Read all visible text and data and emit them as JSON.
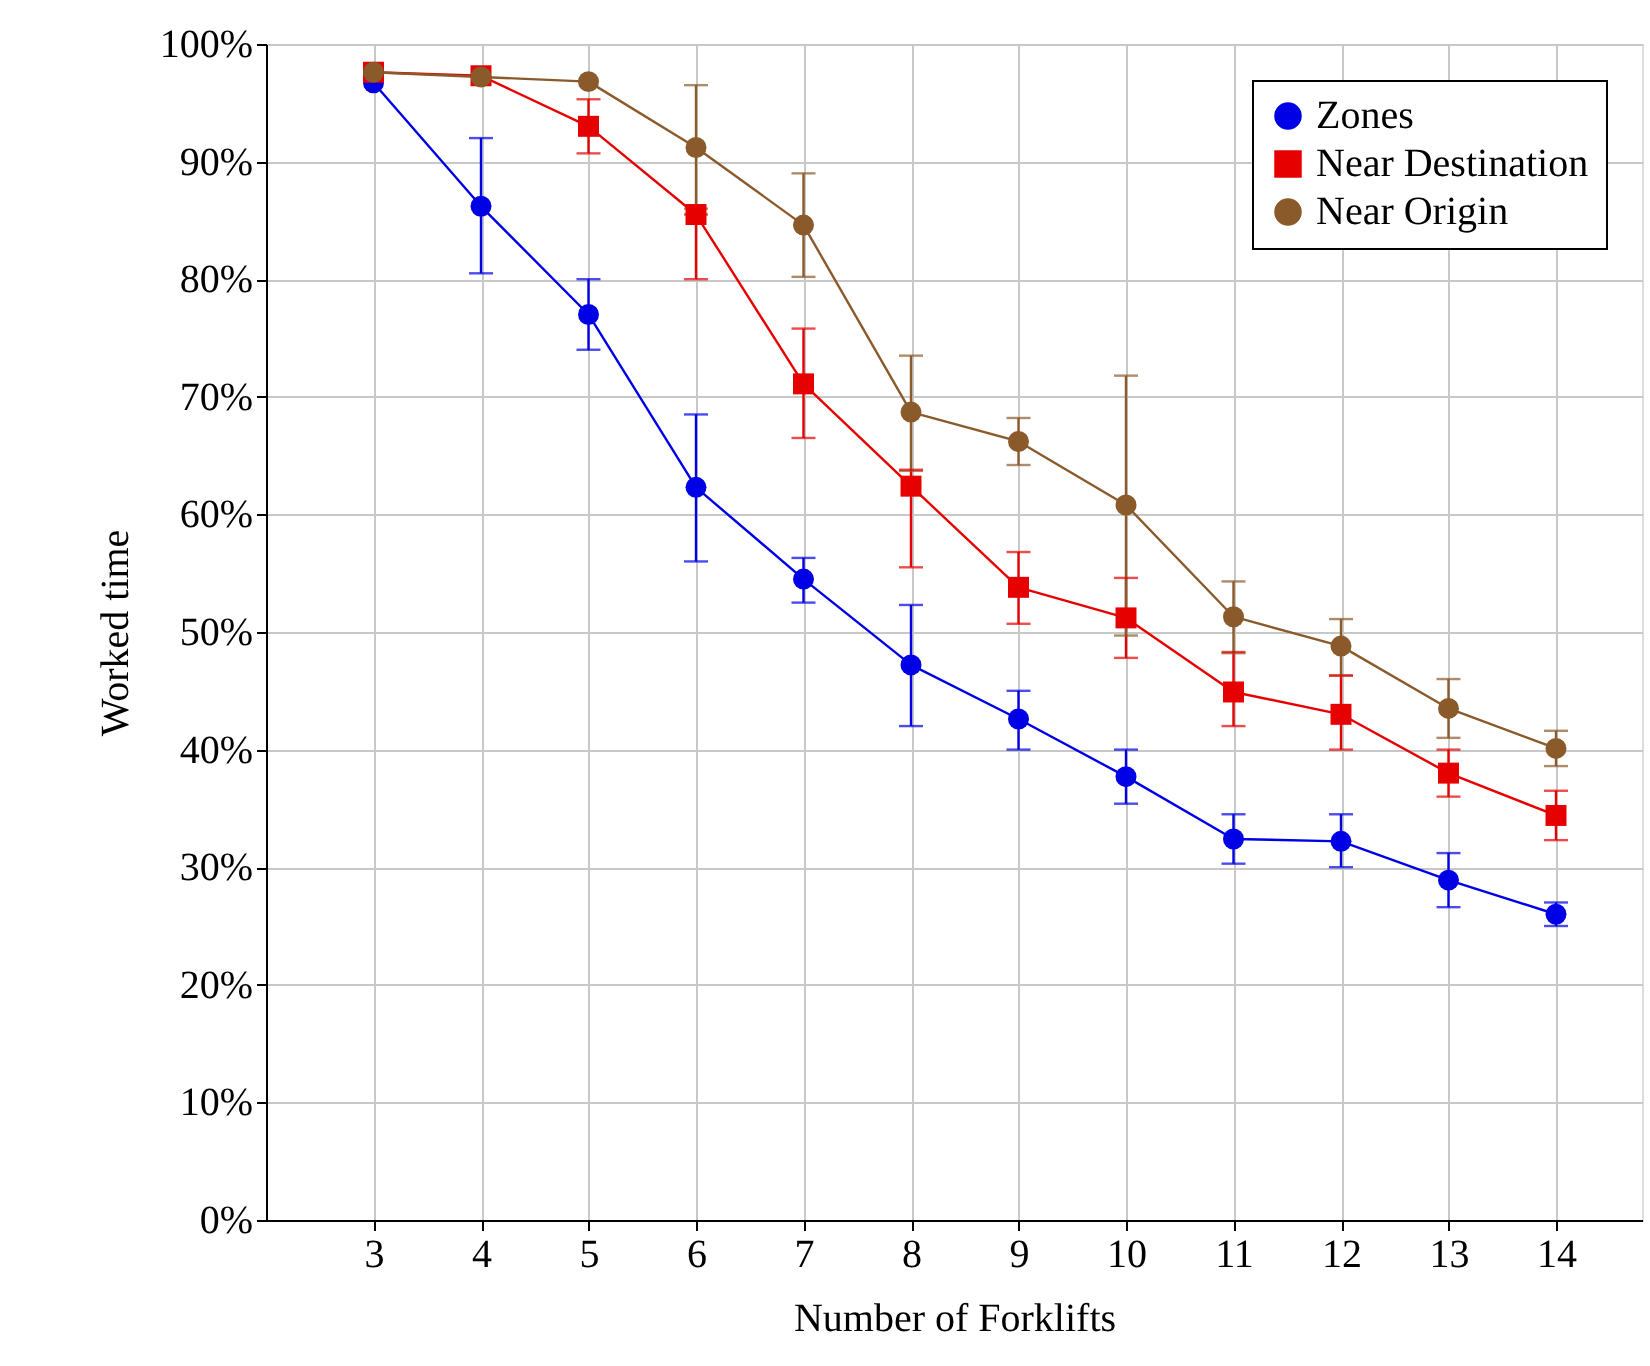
{
  "chart_data": {
    "type": "line",
    "xlabel": "Number of Forklifts",
    "ylabel": "Worked time",
    "x": [
      3,
      4,
      5,
      6,
      7,
      8,
      9,
      10,
      11,
      12,
      13,
      14
    ],
    "xlim": [
      2,
      14.8
    ],
    "xticks": [
      3,
      4,
      5,
      6,
      7,
      8,
      9,
      10,
      11,
      12,
      13,
      14
    ],
    "ylim": [
      0,
      100
    ],
    "yticks": [
      {
        "value": 0,
        "label": "0%"
      },
      {
        "value": 10,
        "label": "10%"
      },
      {
        "value": 20,
        "label": "20%"
      },
      {
        "value": 30,
        "label": "30%"
      },
      {
        "value": 40,
        "label": "40%"
      },
      {
        "value": 50,
        "label": "50%"
      },
      {
        "value": 60,
        "label": "60%"
      },
      {
        "value": 70,
        "label": "70%"
      },
      {
        "value": 80,
        "label": "80%"
      },
      {
        "value": 90,
        "label": "90%"
      },
      {
        "value": 100,
        "label": "100%"
      }
    ],
    "grid": true,
    "legend": "top right",
    "line_style": "solid",
    "series": [
      {
        "name": "Zones",
        "color": "#0000e6",
        "marker": "circle",
        "values": [
          96.7,
          86.2,
          77.0,
          62.3,
          54.5,
          47.2,
          42.6,
          37.7,
          32.4,
          32.2,
          28.9,
          26.0
        ],
        "errors": [
          null,
          [
            80.5,
            92.0
          ],
          [
            74.0,
            80.0
          ],
          [
            56.0,
            68.5
          ],
          [
            52.5,
            56.3
          ],
          [
            42.0,
            52.3
          ],
          [
            40.0,
            45.0
          ],
          [
            35.4,
            40.0
          ],
          [
            30.3,
            34.5
          ],
          [
            30.0,
            34.5
          ],
          [
            26.6,
            31.2
          ],
          [
            25.0,
            27.0
          ]
        ]
      },
      {
        "name": "Near Destination",
        "color": "#e60000",
        "marker": "square",
        "values": [
          97.6,
          97.3,
          93.0,
          85.5,
          71.1,
          62.4,
          53.8,
          51.2,
          44.9,
          43.0,
          38.0,
          34.4
        ],
        "errors": [
          null,
          null,
          [
            90.7,
            95.3
          ],
          [
            80.0,
            85.5
          ],
          [
            66.5,
            75.8
          ],
          [
            55.5,
            63.8
          ],
          [
            50.7,
            56.8
          ],
          [
            47.8,
            54.6
          ],
          [
            42.0,
            48.3
          ],
          [
            40.0,
            46.3
          ],
          [
            36.0,
            40.0
          ],
          [
            32.3,
            36.5
          ]
        ]
      },
      {
        "name": "Near Origin",
        "color": "#8b5a2b",
        "marker": "circle",
        "values": [
          97.6,
          97.2,
          96.8,
          91.2,
          84.6,
          68.7,
          66.2,
          60.8,
          51.3,
          48.8,
          43.5,
          40.1
        ],
        "errors": [
          null,
          null,
          null,
          [
            86.0,
            96.5
          ],
          [
            80.2,
            89.0
          ],
          [
            63.7,
            73.5
          ],
          [
            64.2,
            68.2
          ],
          [
            49.7,
            71.8
          ],
          [
            48.2,
            54.3
          ],
          [
            46.3,
            51.1
          ],
          [
            41.0,
            46.0
          ],
          [
            38.6,
            41.6
          ]
        ]
      }
    ]
  }
}
